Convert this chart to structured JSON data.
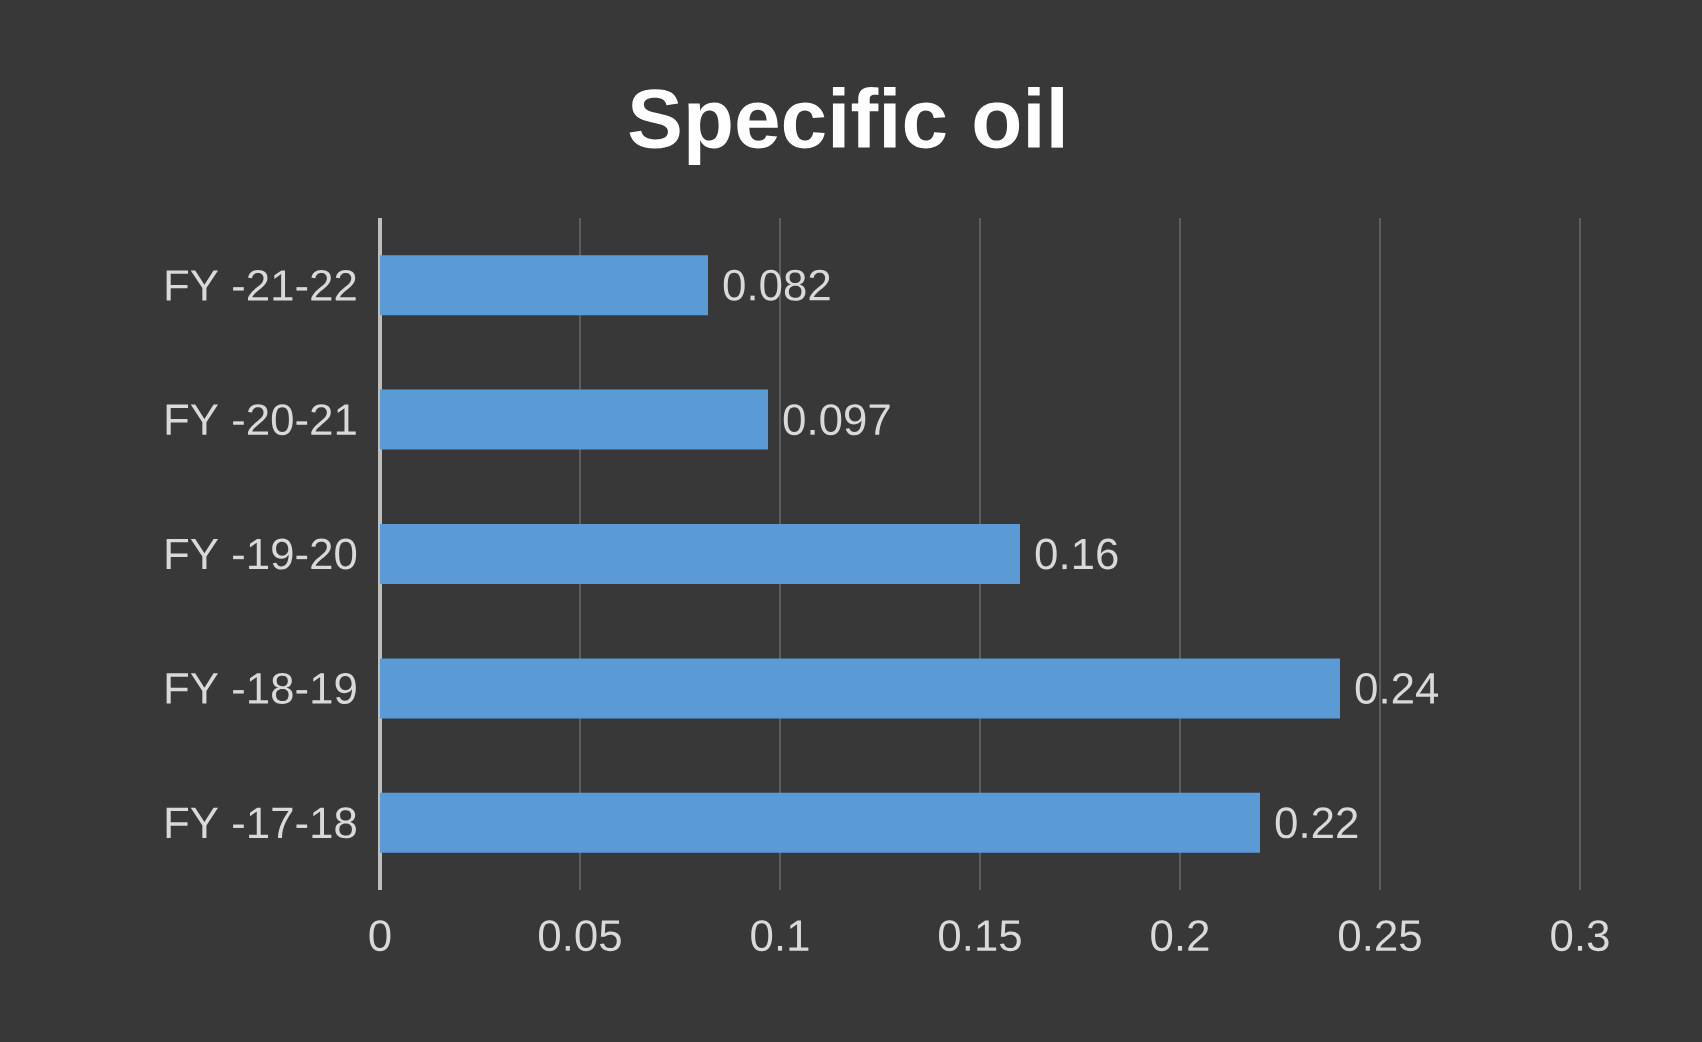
{
  "chart_data": {
    "type": "bar",
    "orientation": "horizontal",
    "title": "Specific oil",
    "categories": [
      "FY -21-22",
      "FY -20-21",
      "FY -19-20",
      "FY -18-19",
      "FY -17-18"
    ],
    "values": [
      0.082,
      0.097,
      0.16,
      0.24,
      0.22
    ],
    "color": "#5b9bd5",
    "xlim": [
      0,
      0.3
    ],
    "xticks": [
      0,
      0.05,
      0.1,
      0.15,
      0.2,
      0.25,
      0.3
    ],
    "grid": "x",
    "data_labels": true
  }
}
